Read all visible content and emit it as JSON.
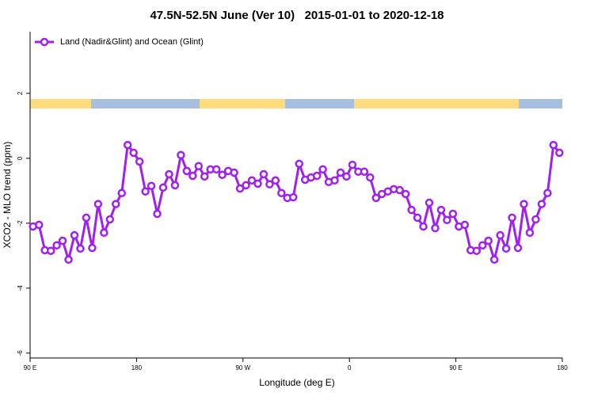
{
  "chart_data": {
    "type": "line",
    "title": "47.5N-52.5N June (Ver 10)   2015-01-01 to 2020-12-18",
    "x_label": "Longitude (deg E)",
    "y_label": "XCO2 - MLO trend (ppm)",
    "x": [
      92.5,
      97.5,
      102.5,
      107.5,
      112.5,
      117.5,
      122.5,
      127.5,
      132.5,
      137.5,
      142.5,
      147.5,
      152.5,
      157.5,
      162.5,
      167.5,
      172.5,
      177.5,
      182.5,
      187.5,
      192.5,
      197.5,
      202.5,
      207.5,
      212.5,
      217.5,
      222.5,
      227.5,
      232.5,
      237.5,
      242.5,
      247.5,
      252.5,
      257.5,
      262.5,
      267.5,
      272.5,
      277.5,
      282.5,
      287.5,
      292.5,
      297.5,
      302.5,
      307.5,
      312.5,
      317.5,
      322.5,
      327.5,
      332.5,
      337.5,
      342.5,
      347.5,
      352.5,
      357.5,
      362.5,
      367.5,
      372.5,
      377.5,
      382.5,
      387.5,
      392.5,
      397.5,
      402.5,
      407.5,
      412.5,
      417.5,
      422.5,
      427.5,
      432.5,
      437.5,
      442.5,
      447.5,
      452.5,
      457.5,
      462.5,
      467.5,
      472.5,
      477.5,
      482.5,
      487.5,
      492.5,
      497.5,
      502.5,
      507.5,
      512.5,
      517.5,
      522.5,
      527.5,
      532.5,
      537.5
    ],
    "series": [
      {
        "name": "Land (Nadir&Glint) and Ocean (Glint)",
        "color": "#a020f0",
        "values": [
          -2.1,
          -2.05,
          -2.83,
          -2.85,
          -2.68,
          -2.54,
          -3.12,
          -2.37,
          -2.78,
          -1.83,
          -2.76,
          -1.41,
          -2.29,
          -1.88,
          -1.41,
          -1.07,
          0.41,
          0.17,
          -0.1,
          -1.02,
          -0.85,
          -1.71,
          -0.9,
          -0.49,
          -0.83,
          0.1,
          -0.39,
          -0.54,
          -0.24,
          -0.56,
          -0.34,
          -0.34,
          -0.51,
          -0.39,
          -0.44,
          -0.93,
          -0.83,
          -0.68,
          -0.78,
          -0.49,
          -0.8,
          -0.68,
          -1.07,
          -1.22,
          -1.2,
          -0.17,
          -0.66,
          -0.59,
          -0.54,
          -0.34,
          -0.73,
          -0.68,
          -0.44,
          -0.56,
          -0.2,
          -0.41,
          -0.41,
          -0.59,
          -1.22,
          -1.1,
          -1.02,
          -0.95,
          -0.98,
          -1.1,
          -1.59,
          -1.83,
          -2.1,
          -1.37,
          -2.15,
          -1.59,
          -1.9,
          -1.71,
          -2.1,
          -2.05,
          -2.83,
          -2.85,
          -2.68,
          -2.54,
          -3.12,
          -2.37,
          -2.78,
          -1.83,
          -2.76,
          -1.41,
          -2.29,
          -1.88,
          -1.41,
          -1.07,
          0.41,
          0.17
        ]
      }
    ],
    "xlim": [
      90,
      540
    ],
    "xticks": [
      {
        "value": 90,
        "label": "90 E"
      },
      180,
      {
        "value": 270,
        "label": "90 W"
      },
      {
        "value": 360,
        "label": "0"
      },
      {
        "value": 450,
        "label": "90 E"
      },
      {
        "value": 540,
        "label": "180"
      }
    ],
    "ylim": [
      -6.15,
      3.9
    ],
    "yticks": [
      -6,
      -4,
      -2,
      0,
      2
    ],
    "legend": "top-left"
  }
}
